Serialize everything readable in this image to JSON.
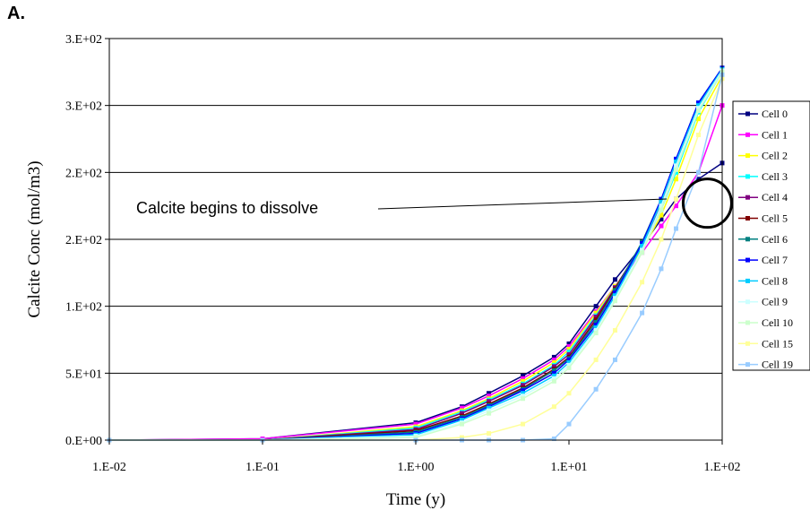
{
  "panel_label": "A.",
  "chart_data": {
    "type": "scatter",
    "title": "",
    "xlabel": "Time (y)",
    "ylabel": "Calcite Conc (mol/m3)",
    "x_scale": "log",
    "xlim": [
      0.01,
      100
    ],
    "ylim": [
      0,
      300
    ],
    "x_ticks": [
      {
        "value": 0.01,
        "label": "1.E-02"
      },
      {
        "value": 0.1,
        "label": "1.E-01"
      },
      {
        "value": 1,
        "label": "1.E+00"
      },
      {
        "value": 10,
        "label": "1.E+01"
      },
      {
        "value": 100,
        "label": "1.E+02"
      }
    ],
    "y_ticks": [
      {
        "value": 0,
        "label": "0.E+00"
      },
      {
        "value": 50,
        "label": "5.E+01"
      },
      {
        "value": 100,
        "label": "1.E+02"
      },
      {
        "value": 150,
        "label": "2.E+02"
      },
      {
        "value": 200,
        "label": "2.E+02"
      },
      {
        "value": 250,
        "label": "3.E+02"
      },
      {
        "value": 300,
        "label": "3.E+02"
      }
    ],
    "grid": "horizontal",
    "legend_position": "right",
    "annotation": {
      "text": "Calcite begins to dissolve",
      "x": 80,
      "y": 177
    },
    "series": [
      {
        "name": "Cell 0",
        "color": "#000080",
        "x": [
          0.01,
          0.1,
          1,
          2,
          3,
          5,
          8,
          10,
          15,
          20,
          30,
          40,
          50,
          70,
          100
        ],
        "y": [
          0,
          1,
          13,
          25,
          35,
          48,
          62,
          72,
          100,
          120,
          145,
          165,
          180,
          195,
          207
        ]
      },
      {
        "name": "Cell 1",
        "color": "#ff00ff",
        "x": [
          0.01,
          0.1,
          1,
          2,
          3,
          5,
          8,
          10,
          15,
          20,
          30,
          40,
          50,
          70,
          100
        ],
        "y": [
          0,
          1,
          12,
          24,
          33,
          46,
          60,
          70,
          96,
          115,
          140,
          160,
          175,
          200,
          250
        ]
      },
      {
        "name": "Cell 2",
        "color": "#ffff00",
        "x": [
          0.01,
          0.1,
          1,
          2,
          3,
          5,
          8,
          10,
          15,
          20,
          30,
          40,
          50,
          70,
          100
        ],
        "y": [
          0,
          0,
          10,
          22,
          31,
          44,
          58,
          68,
          95,
          115,
          142,
          168,
          195,
          240,
          272
        ]
      },
      {
        "name": "Cell 3",
        "color": "#00ffff",
        "x": [
          0.01,
          0.1,
          1,
          2,
          3,
          5,
          8,
          10,
          15,
          20,
          30,
          40,
          50,
          70,
          100
        ],
        "y": [
          0,
          0,
          9,
          21,
          30,
          42,
          56,
          66,
          93,
          114,
          145,
          172,
          200,
          245,
          275
        ]
      },
      {
        "name": "Cell 4",
        "color": "#800080",
        "x": [
          0.01,
          0.1,
          1,
          2,
          3,
          5,
          8,
          10,
          15,
          20,
          30,
          40,
          50,
          70,
          100
        ],
        "y": [
          0,
          0,
          8,
          20,
          29,
          41,
          55,
          64,
          92,
          114,
          146,
          175,
          205,
          248,
          277
        ]
      },
      {
        "name": "Cell 5",
        "color": "#800000",
        "x": [
          0.01,
          0.1,
          1,
          2,
          3,
          5,
          8,
          10,
          15,
          20,
          30,
          40,
          50,
          70,
          100
        ],
        "y": [
          0,
          0,
          7,
          18,
          27,
          39,
          53,
          62,
          90,
          113,
          147,
          178,
          208,
          250,
          278
        ]
      },
      {
        "name": "Cell 6",
        "color": "#008080",
        "x": [
          0.01,
          0.1,
          1,
          2,
          3,
          5,
          8,
          10,
          15,
          20,
          30,
          40,
          50,
          70,
          100
        ],
        "y": [
          0,
          0,
          6,
          17,
          26,
          38,
          52,
          61,
          88,
          112,
          148,
          180,
          210,
          252,
          278
        ]
      },
      {
        "name": "Cell 7",
        "color": "#0000ff",
        "x": [
          0.01,
          0.1,
          1,
          2,
          3,
          5,
          8,
          10,
          15,
          20,
          30,
          40,
          50,
          70,
          100
        ],
        "y": [
          0,
          0,
          5,
          16,
          25,
          37,
          50,
          60,
          86,
          110,
          147,
          180,
          210,
          252,
          278
        ]
      },
      {
        "name": "Cell 8",
        "color": "#00ccff",
        "x": [
          0.01,
          0.1,
          1,
          2,
          3,
          5,
          8,
          10,
          15,
          20,
          30,
          40,
          50,
          70,
          100
        ],
        "y": [
          0,
          0,
          4,
          15,
          24,
          35,
          48,
          58,
          84,
          108,
          145,
          178,
          208,
          250,
          277
        ]
      },
      {
        "name": "Cell 9",
        "color": "#ccffff",
        "x": [
          0.01,
          0.1,
          1,
          2,
          3,
          5,
          8,
          10,
          15,
          20,
          30,
          40,
          50,
          70,
          100
        ],
        "y": [
          0,
          0,
          3,
          13,
          22,
          33,
          46,
          56,
          82,
          106,
          142,
          175,
          205,
          248,
          276
        ]
      },
      {
        "name": "Cell 10",
        "color": "#ccffcc",
        "x": [
          0.01,
          0.1,
          1,
          2,
          3,
          5,
          8,
          10,
          15,
          20,
          30,
          40,
          50,
          70,
          100
        ],
        "y": [
          0,
          0,
          2,
          12,
          20,
          31,
          44,
          54,
          80,
          104,
          140,
          172,
          202,
          246,
          275
        ]
      },
      {
        "name": "Cell 15",
        "color": "#ffff99",
        "x": [
          0.01,
          0.1,
          1,
          2,
          3,
          5,
          8,
          10,
          15,
          20,
          30,
          40,
          50,
          70,
          100
        ],
        "y": [
          0,
          0,
          0,
          2,
          5,
          12,
          25,
          35,
          60,
          82,
          118,
          150,
          180,
          228,
          270
        ]
      },
      {
        "name": "Cell 19",
        "color": "#99ccff",
        "x": [
          0.01,
          0.1,
          1,
          2,
          3,
          5,
          8,
          10,
          15,
          20,
          30,
          40,
          50,
          70,
          100
        ],
        "y": [
          0,
          0,
          0,
          0,
          0,
          0,
          1,
          12,
          38,
          60,
          95,
          128,
          158,
          200,
          273
        ]
      }
    ]
  }
}
